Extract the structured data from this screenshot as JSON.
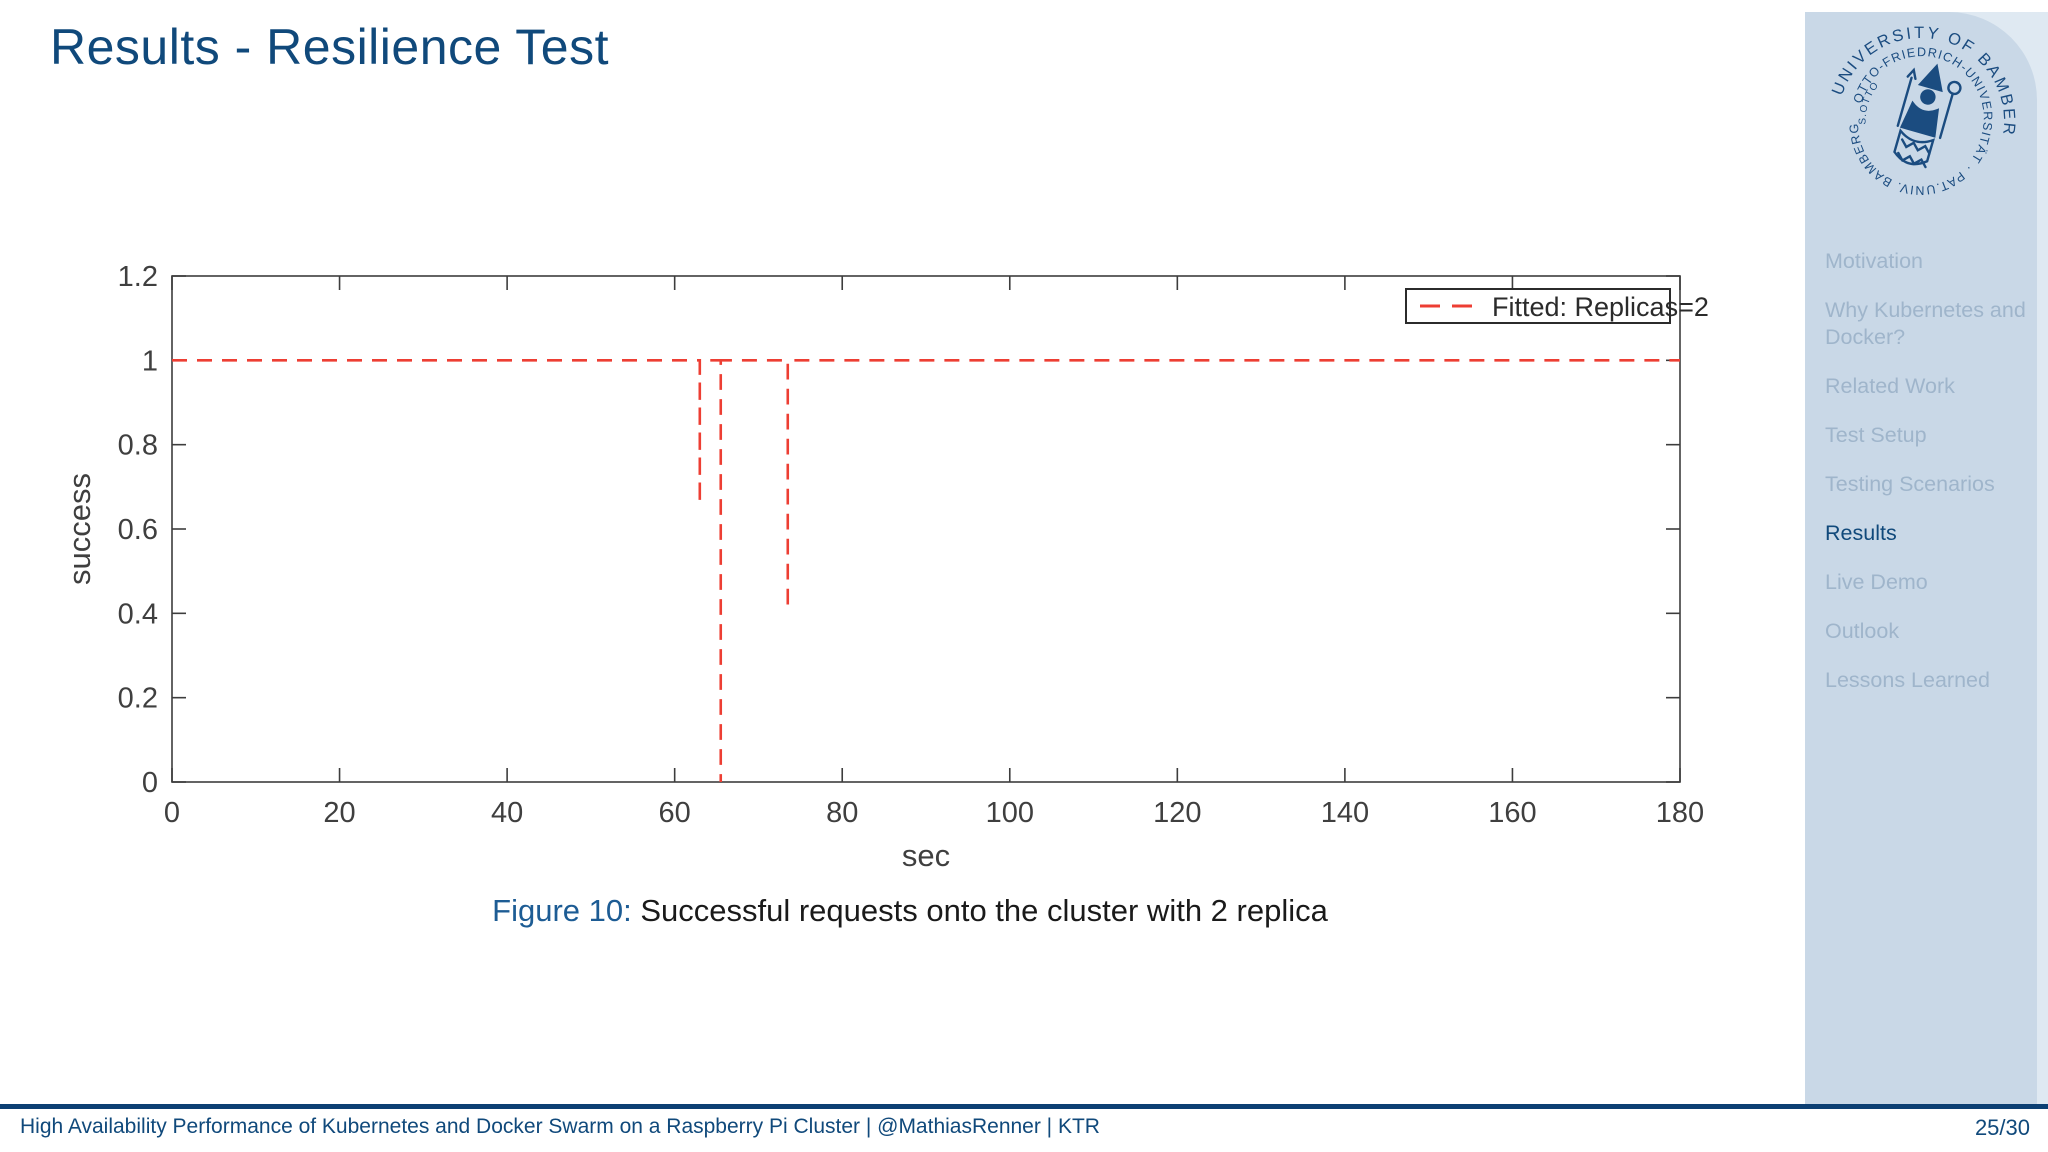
{
  "slide": {
    "title": "Results - Resilience Test",
    "caption_label": "Figure 10:",
    "caption_text": " Successful requests onto the cluster with 2 replica"
  },
  "sidebar": {
    "logo": {
      "name": "University of Bamberg seal",
      "arc_outer": "UNIVERSITY OF BAMBERG",
      "arc_inner": "OTTO-FRIEDRICH-UNIVERSITÄT · PAT.UNIV. BAMBERG",
      "arc_small": "S.OTTO"
    },
    "items": [
      {
        "id": "motivation",
        "label": "Motivation",
        "active": false
      },
      {
        "id": "why-kubernetes-and-docker",
        "label": "Why Kubernetes and Docker?",
        "active": false
      },
      {
        "id": "related-work",
        "label": "Related Work",
        "active": false
      },
      {
        "id": "test-setup",
        "label": "Test Setup",
        "active": false
      },
      {
        "id": "testing-scenarios",
        "label": "Testing Scenarios",
        "active": false
      },
      {
        "id": "results",
        "label": "Results",
        "active": true
      },
      {
        "id": "live-demo",
        "label": "Live Demo",
        "active": false
      },
      {
        "id": "outlook",
        "label": "Outlook",
        "active": false
      },
      {
        "id": "lessons-learned",
        "label": "Lessons Learned",
        "active": false
      }
    ]
  },
  "footer": {
    "left": "High Availability Performance of Kubernetes and Docker Swarm on a Raspberry Pi Cluster | @MathiasRenner | KTR",
    "page": "25/30"
  },
  "colors": {
    "structure_blue": "#10497b",
    "sidebar_panel": "#c9d8e7",
    "sidebar_backdrop": "#dfe9f2",
    "sidebar_inactive": "#9fb5cb",
    "footer_rule": "#0c3f73",
    "caption_label_blue": "#1d5c94",
    "axis_gray": "#3d3d3d",
    "series_red": "#ed3e33"
  },
  "chart_data": {
    "type": "line",
    "title": "",
    "xlabel": "sec",
    "ylabel": "success",
    "xlim": [
      0,
      180
    ],
    "ylim": [
      0,
      1.2
    ],
    "xticks": [
      0,
      20,
      40,
      60,
      80,
      100,
      120,
      140,
      160,
      180
    ],
    "yticks": [
      0,
      0.2,
      0.4,
      0.6,
      0.8,
      1,
      1.2
    ],
    "yticklabels": [
      "0",
      "0.2",
      "0.4",
      "0.6",
      "0.8",
      "1",
      "1.2"
    ],
    "grid": false,
    "legend_position": "top-right",
    "legend": [
      {
        "label": "Fitted: Replicas=2",
        "color": "#ed3e33",
        "style": "dashed"
      }
    ],
    "series": [
      {
        "name": "Fitted: Replicas=2",
        "color": "#ed3e33",
        "style": "dashed",
        "baseline_y": 1.0,
        "x_range": [
          0,
          180
        ],
        "dips": [
          {
            "x": 63.0,
            "min": 0.66
          },
          {
            "x": 65.5,
            "min": 0.0
          },
          {
            "x": 73.5,
            "min": 0.41
          }
        ]
      }
    ]
  }
}
